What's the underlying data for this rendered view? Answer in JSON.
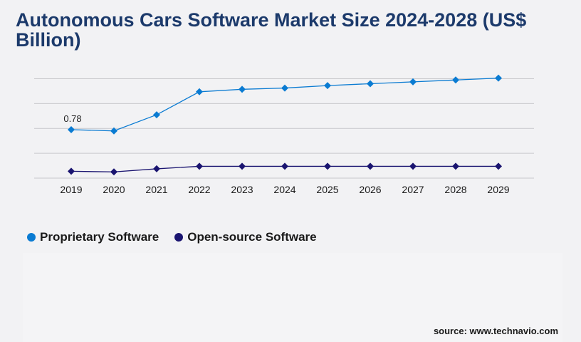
{
  "title": "Autonomous Cars Software Market Size 2024-2028 (US$ Billion)",
  "source": "source: www.technavio.com",
  "chart_data": {
    "type": "line",
    "title": "Autonomous Cars Software Market Size 2024-2028 (US$ Billion)",
    "categories": [
      "2019",
      "2020",
      "2021",
      "2022",
      "2023",
      "2024",
      "2025",
      "2026",
      "2027",
      "2028",
      "2029"
    ],
    "ylim": [
      0,
      1.6
    ],
    "grid": true,
    "legend": "bottom-left",
    "series": [
      {
        "name": "Proprietary Software",
        "color": "#0a7bd2",
        "values": [
          0.78,
          0.76,
          1.02,
          1.39,
          1.43,
          1.45,
          1.49,
          1.52,
          1.55,
          1.58,
          1.61
        ],
        "data_labels": {
          "0": "0.78"
        }
      },
      {
        "name": "Open-source Software",
        "color": "#1a1470",
        "values": [
          0.11,
          0.1,
          0.15,
          0.19,
          0.19,
          0.19,
          0.19,
          0.19,
          0.19,
          0.19,
          0.19
        ]
      }
    ]
  }
}
